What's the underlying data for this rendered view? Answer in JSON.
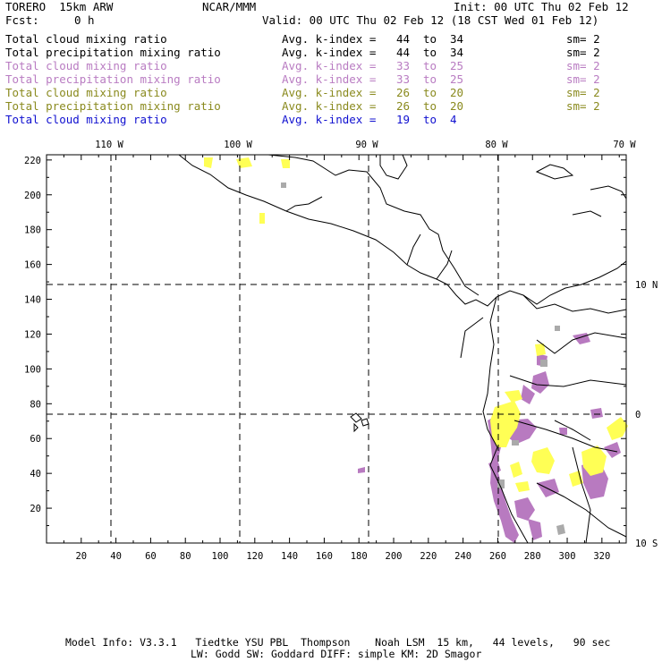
{
  "header": {
    "model": "TORERO  15km ARW",
    "org": "NCAR/MMM",
    "init": "Init: 00 UTC Thu 02 Feb 12",
    "fcst_label": "Fcst:",
    "fcst_value": "0 h",
    "valid": "Valid: 00 UTC Thu 02 Feb 12 (18 CST Wed 01 Feb 12)"
  },
  "legend": [
    {
      "field": "Total cloud mixing ratio",
      "kindex": "Avg. k-index =",
      "from": "44",
      "to_word": "to",
      "to": "34",
      "sm": "sm= 2",
      "color": "#000000"
    },
    {
      "field": "Total precipitation mixing ratio",
      "kindex": "Avg. k-index =",
      "from": "44",
      "to_word": "to",
      "to": "34",
      "sm": "sm= 2",
      "color": "#000000"
    },
    {
      "field": "Total cloud mixing ratio",
      "kindex": "Avg. k-index =",
      "from": "33",
      "to_word": "to",
      "to": "25",
      "sm": "sm= 2",
      "color": "#b97cc2"
    },
    {
      "field": "Total precipitation mixing ratio",
      "kindex": "Avg. k-index =",
      "from": "33",
      "to_word": "to",
      "to": "25",
      "sm": "sm= 2",
      "color": "#b97cc2"
    },
    {
      "field": "Total cloud mixing ratio",
      "kindex": "Avg. k-index =",
      "from": "26",
      "to_word": "to",
      "to": "20",
      "sm": "sm= 2",
      "color": "#8a8a1e"
    },
    {
      "field": "Total precipitation mixing ratio",
      "kindex": "Avg. k-index =",
      "from": "26",
      "to_word": "to",
      "to": "20",
      "sm": "sm= 2",
      "color": "#8a8a1e"
    },
    {
      "field": "Total cloud mixing ratio",
      "kindex": "Avg. k-index =",
      "from": "19",
      "to_word": "to",
      "to": "4",
      "sm": "",
      "color": "#1010d0"
    }
  ],
  "map": {
    "top_lon_labels": [
      "110 W",
      "100 W",
      "90 W",
      "80 W",
      "70 W"
    ],
    "right_lat_labels": [
      "10 N",
      "0",
      "10 S"
    ],
    "y_ticks": [
      "220",
      "200",
      "180",
      "160",
      "140",
      "120",
      "100",
      "80",
      "60",
      "40",
      "20"
    ],
    "x_ticks": [
      "20",
      "40",
      "60",
      "80",
      "100",
      "120",
      "140",
      "160",
      "180",
      "200",
      "220",
      "240",
      "260",
      "280",
      "300",
      "320"
    ],
    "colors": {
      "frame": "#000000",
      "purple": "#b87ac0",
      "yellow": "#ffff55",
      "gray": "#aaaaaa"
    }
  },
  "footer": {
    "line1": "Model Info: V3.3.1   Tiedtke YSU PBL  Thompson    Noah LSM  15 km,   44 levels,   90 sec",
    "line2": "LW: Godd SW: Goddard DIFF: simple KM: 2D Smagor"
  }
}
